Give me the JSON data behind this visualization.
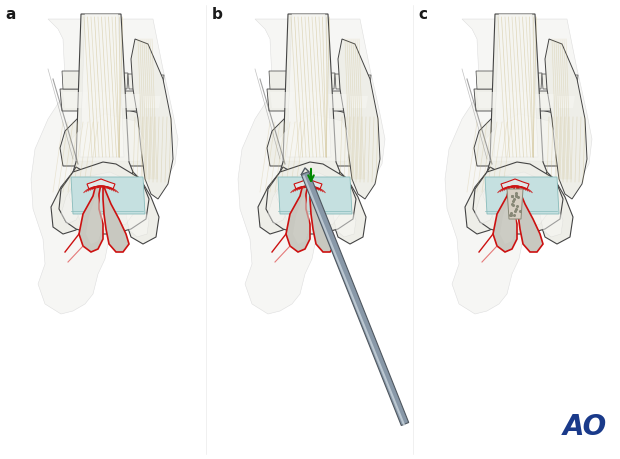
{
  "bg_color": "#ffffff",
  "label_a": "a",
  "label_b": "b",
  "label_c": "c",
  "label_color": "#1a1a1a",
  "label_fontsize": 11,
  "ao_text": "AO",
  "ao_color": "#1a3a8a",
  "ao_fontsize": 20,
  "bone_fill": "#eeeee8",
  "bone_fill2": "#e0e0d8",
  "bone_outline": "#444444",
  "bone_outline2": "#666666",
  "cartilage_fill": "#c5e0e0",
  "cartilage_outline": "#88bbbb",
  "red": "#cc1111",
  "red_soft": "#dd3333",
  "gray_tissue": "#b8b8b0",
  "gray_tissue2": "#c8c8c0",
  "gray_dark": "#909088",
  "tendon_color": "#c8b882",
  "instrument_fill": "#8898a8",
  "instrument_light": "#c8d4dc",
  "instrument_dark": "#505860",
  "green_arrow": "#008800",
  "skin_bg": "#f5f5f2",
  "shadow": "#d0d0cc",
  "figsize": [
    6.2,
    4.59
  ],
  "dpi": 100
}
